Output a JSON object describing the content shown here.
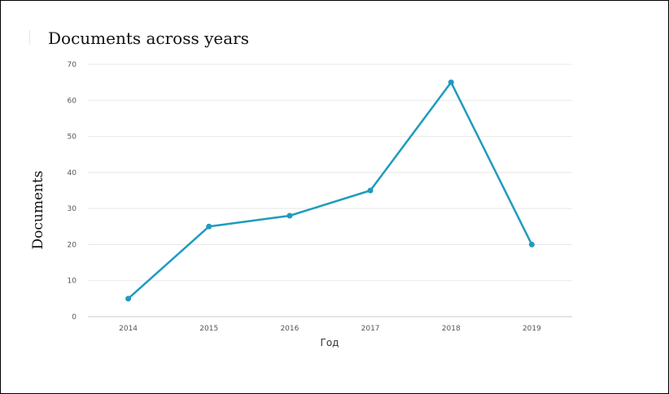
{
  "chart_data": {
    "type": "line",
    "title": "Documents across years",
    "xlabel": "Год",
    "ylabel": "Documents",
    "categories": [
      "2014",
      "2015",
      "2016",
      "2017",
      "2018",
      "2019"
    ],
    "series": [
      {
        "values": [
          5,
          25,
          28,
          35,
          65,
          20
        ]
      }
    ],
    "ylim": [
      0,
      70
    ],
    "yticks": [
      0,
      10,
      20,
      30,
      40,
      50,
      60,
      70
    ],
    "grid": true,
    "line_color": "#1f9bbf"
  }
}
